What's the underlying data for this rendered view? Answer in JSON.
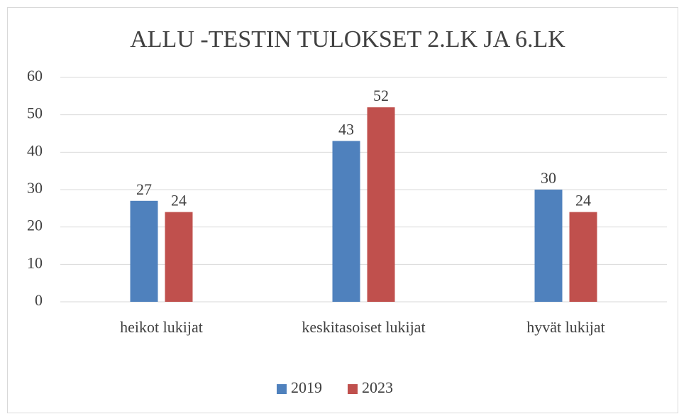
{
  "chart_data": {
    "type": "bar",
    "title": "ALLU -TESTIN TULOKSET 2.LK JA 6.LK",
    "categories": [
      "heikot lukijat",
      "keskitasoiset lukijat",
      "hyvät lukijat"
    ],
    "series": [
      {
        "name": "2019",
        "color": "#4f81bd",
        "values": [
          27,
          43,
          30
        ]
      },
      {
        "name": "2023",
        "color": "#c0504d",
        "values": [
          24,
          52,
          24
        ]
      }
    ],
    "ylim": [
      0,
      60
    ],
    "yticks": [
      0,
      10,
      20,
      30,
      40,
      50,
      60
    ],
    "grid": true,
    "legend": "bottom"
  }
}
